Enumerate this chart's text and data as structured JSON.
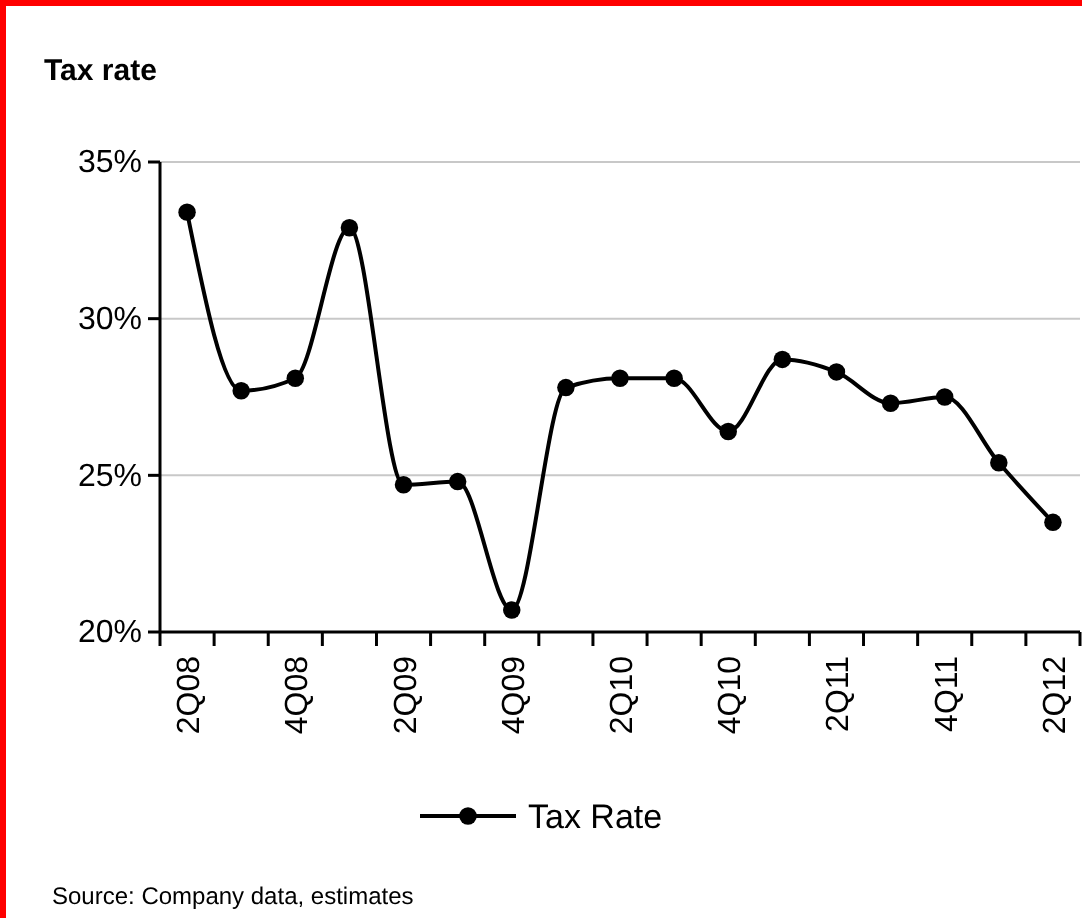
{
  "chart_data": {
    "type": "line",
    "title": "Tax rate",
    "categories": [
      "2Q08",
      null,
      "4Q08",
      null,
      "2Q09",
      null,
      "4Q09",
      null,
      "2Q10",
      null,
      "4Q10",
      null,
      "2Q11",
      null,
      "4Q11",
      null,
      "2Q12"
    ],
    "series": [
      {
        "name": "Tax Rate",
        "color": "#000000",
        "values": [
          33.4,
          27.7,
          28.1,
          32.9,
          24.7,
          24.8,
          20.7,
          27.8,
          28.1,
          28.1,
          26.4,
          28.7,
          28.3,
          27.3,
          27.5,
          25.4,
          23.5
        ]
      }
    ],
    "ylim": [
      20,
      35
    ],
    "yticks": [
      {
        "value": 20,
        "label": "20%"
      },
      {
        "value": 25,
        "label": "25%"
      },
      {
        "value": 30,
        "label": "30%"
      },
      {
        "value": 35,
        "label": "35%"
      }
    ],
    "grid": "y",
    "legend": "bottom",
    "marker": "circle",
    "line_style": "solid",
    "annotations": [
      "Source: Company data, estimates"
    ]
  }
}
